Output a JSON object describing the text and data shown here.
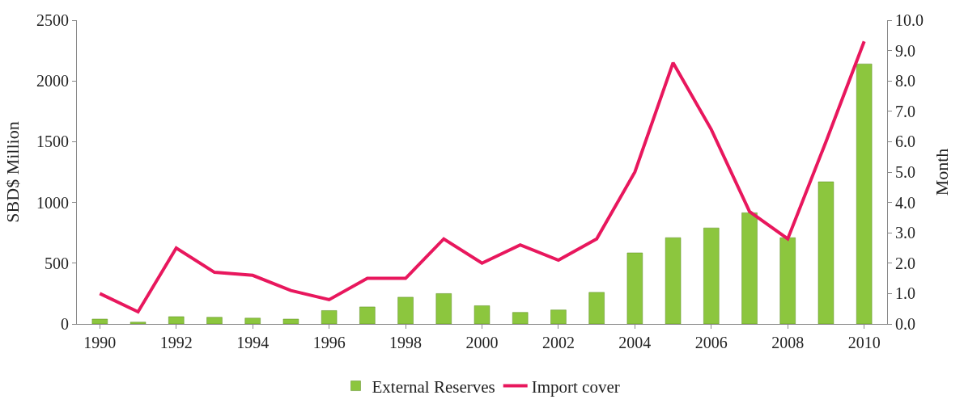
{
  "chart_data": {
    "type": "bar",
    "ylabel": "SBD$ Million",
    "y2label": "Month",
    "x": [
      1990,
      1991,
      1992,
      1993,
      1994,
      1995,
      1996,
      1997,
      1998,
      1999,
      2000,
      2001,
      2002,
      2003,
      2004,
      2005,
      2006,
      2007,
      2008,
      2009,
      2010
    ],
    "xlim": [
      1989.4,
      2010.6
    ],
    "xticks": [
      1990,
      1992,
      1994,
      1996,
      1998,
      2000,
      2002,
      2004,
      2006,
      2008,
      2010
    ],
    "ylim": [
      0,
      2500
    ],
    "yticks": [
      0,
      500,
      1000,
      1500,
      2000,
      2500
    ],
    "y2lim": [
      0,
      10
    ],
    "y2ticks": [
      {
        "value": 0,
        "label": "0.0"
      },
      {
        "value": 1,
        "label": "1.0"
      },
      {
        "value": 2,
        "label": "2.0"
      },
      {
        "value": 3,
        "label": "3.0"
      },
      {
        "value": 4,
        "label": "4.0"
      },
      {
        "value": 5,
        "label": "5.0"
      },
      {
        "value": 6,
        "label": "6.0"
      },
      {
        "value": 7,
        "label": "7.0"
      },
      {
        "value": 8,
        "label": "8.0"
      },
      {
        "value": 9,
        "label": "9.0"
      },
      {
        "value": 10,
        "label": "10.0"
      }
    ],
    "series": [
      {
        "name": "External Reserves",
        "color": "#8cc63e",
        "values": [
          40,
          15,
          60,
          55,
          48,
          40,
          110,
          140,
          220,
          250,
          150,
          95,
          115,
          260,
          585,
          710,
          790,
          915,
          710,
          1170,
          2140
        ]
      },
      {
        "name": "Import cover",
        "type": "line",
        "axis": "y2",
        "color": "#e8175d",
        "values": [
          1.0,
          0.4,
          2.5,
          1.7,
          1.6,
          1.1,
          0.8,
          1.5,
          1.5,
          2.8,
          2.0,
          2.6,
          2.1,
          2.8,
          5.0,
          8.6,
          6.4,
          3.7,
          2.8,
          6.0,
          9.3
        ]
      }
    ],
    "legend": "bottom",
    "marker": "none",
    "line_style": "solid"
  }
}
